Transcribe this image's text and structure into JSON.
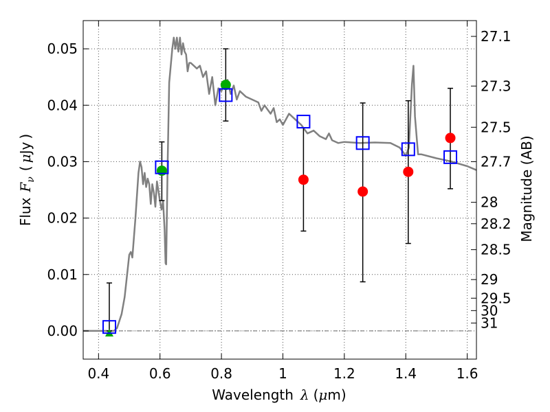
{
  "chart_data": {
    "type": "scatter",
    "title": "",
    "xlabel": {
      "text": "Wavelength",
      "symbol": "λ",
      "unit_open": "(",
      "unit_mu": "μ",
      "unit_rest": "m)"
    },
    "ylabel": {
      "text": "Flux",
      "symbol": "F",
      "subscript": "ν",
      "unit_open": "(",
      "unit_mu": "μ",
      "unit_rest": "Jy",
      "unit_close": ")"
    },
    "y2label": "Magnitude (AB)",
    "xlim": [
      0.35,
      1.63
    ],
    "ylim": [
      -0.005,
      0.055
    ],
    "grid": true,
    "x_ticks": [
      0.4,
      0.6,
      0.8,
      1.0,
      1.2,
      1.4,
      1.6
    ],
    "x_tick_labels": [
      "0.4",
      "0.6",
      "0.8",
      "1",
      "1.2",
      "1.4",
      "1.6"
    ],
    "y_ticks": [
      0.0,
      0.01,
      0.02,
      0.03,
      0.04,
      0.05
    ],
    "y_tick_labels": [
      "0.00",
      "0.01",
      "0.02",
      "0.03",
      "0.04",
      "0.05"
    ],
    "mag_ticks": [
      {
        "label": "27.1",
        "flux": 0.0522
      },
      {
        "label": "27.3",
        "flux": 0.0434
      },
      {
        "label": "27.5",
        "flux": 0.0361
      },
      {
        "label": "27.7",
        "flux": 0.03
      },
      {
        "label": "28",
        "flux": 0.0228
      },
      {
        "label": "28.2",
        "flux": 0.019
      },
      {
        "label": "28.5",
        "flux": 0.0144
      },
      {
        "label": "29",
        "flux": 0.0091
      },
      {
        "label": "29.5",
        "flux": 0.0058
      },
      {
        "label": "30",
        "flux": 0.0036
      },
      {
        "label": "31",
        "flux": 0.0014
      }
    ],
    "model_sed": {
      "x": [
        0.35,
        0.45,
        0.46,
        0.475,
        0.485,
        0.495,
        0.5,
        0.505,
        0.51,
        0.52,
        0.53,
        0.535,
        0.54,
        0.545,
        0.55,
        0.555,
        0.56,
        0.565,
        0.57,
        0.575,
        0.58,
        0.585,
        0.59,
        0.6,
        0.605,
        0.61,
        0.615,
        0.618,
        0.62,
        0.625,
        0.63,
        0.64,
        0.645,
        0.65,
        0.655,
        0.66,
        0.665,
        0.67,
        0.675,
        0.68,
        0.685,
        0.69,
        0.695,
        0.7,
        0.71,
        0.72,
        0.73,
        0.74,
        0.75,
        0.76,
        0.77,
        0.78,
        0.785,
        0.79,
        0.8,
        0.81,
        0.82,
        0.83,
        0.84,
        0.85,
        0.86,
        0.88,
        0.9,
        0.92,
        0.93,
        0.94,
        0.96,
        0.97,
        0.98,
        0.99,
        1.0,
        1.02,
        1.04,
        1.06,
        1.08,
        1.1,
        1.12,
        1.14,
        1.15,
        1.16,
        1.18,
        1.2,
        1.25,
        1.3,
        1.35,
        1.38,
        1.39,
        1.4,
        1.41,
        1.42,
        1.425,
        1.43,
        1.44,
        1.45,
        1.5,
        1.55,
        1.6,
        1.63
      ],
      "y": [
        0.0,
        0.0,
        0.0005,
        0.003,
        0.006,
        0.011,
        0.0135,
        0.014,
        0.013,
        0.02,
        0.028,
        0.03,
        0.029,
        0.026,
        0.028,
        0.0255,
        0.027,
        0.026,
        0.0225,
        0.026,
        0.0245,
        0.022,
        0.0265,
        0.023,
        0.0215,
        0.023,
        0.018,
        0.012,
        0.0118,
        0.03,
        0.044,
        0.05,
        0.052,
        0.05,
        0.052,
        0.0495,
        0.052,
        0.049,
        0.051,
        0.0495,
        0.049,
        0.046,
        0.0475,
        0.0475,
        0.047,
        0.0465,
        0.047,
        0.045,
        0.046,
        0.042,
        0.045,
        0.04,
        0.0415,
        0.043,
        0.0425,
        0.044,
        0.0445,
        0.042,
        0.0435,
        0.041,
        0.0425,
        0.0415,
        0.041,
        0.0405,
        0.039,
        0.04,
        0.0385,
        0.0395,
        0.037,
        0.0375,
        0.0365,
        0.0385,
        0.0375,
        0.0365,
        0.035,
        0.0355,
        0.0345,
        0.034,
        0.035,
        0.0338,
        0.0333,
        0.0335,
        0.0333,
        0.0334,
        0.0333,
        0.0325,
        0.0318,
        0.031,
        0.0325,
        0.0437,
        0.047,
        0.038,
        0.0313,
        0.0313,
        0.0306,
        0.03,
        0.0292,
        0.0285
      ]
    },
    "series": [
      {
        "name": "observed",
        "color": "#ff0000",
        "marker": "circle",
        "points": [
          {
            "x": 1.067,
            "y": 0.0268,
            "yerr_low": 0.0177,
            "yerr_high": 0.036
          },
          {
            "x": 1.26,
            "y": 0.0247,
            "yerr_low": 0.0087,
            "yerr_high": 0.0404
          },
          {
            "x": 1.408,
            "y": 0.0282,
            "yerr_low": 0.0155,
            "yerr_high": 0.0408
          },
          {
            "x": 1.545,
            "y": 0.0342,
            "yerr_low": 0.0252,
            "yerr_high": 0.043
          },
          {
            "x": 0.435,
            "y": 0.0,
            "yerr_low": 0.0,
            "yerr_high": 0.0085
          }
        ]
      },
      {
        "name": "observed_green",
        "color": "#00aa00",
        "marker": "circle",
        "points": [
          {
            "x": 0.606,
            "y": 0.0284,
            "yerr_low": 0.0231,
            "yerr_high": 0.0335
          },
          {
            "x": 0.814,
            "y": 0.0436,
            "yerr_low": 0.0372,
            "yerr_high": 0.05
          }
        ]
      },
      {
        "name": "upper_limit",
        "color": "#00aa00",
        "marker": "triangle-up",
        "points": [
          {
            "x": 0.435,
            "y": -0.0005
          }
        ]
      },
      {
        "name": "model_band",
        "color": "#0000ff",
        "marker": "square-open",
        "points": [
          {
            "x": 0.435,
            "y": 0.0007
          },
          {
            "x": 0.606,
            "y": 0.029
          },
          {
            "x": 0.814,
            "y": 0.0418
          },
          {
            "x": 1.067,
            "y": 0.0371
          },
          {
            "x": 1.26,
            "y": 0.0333
          },
          {
            "x": 1.408,
            "y": 0.0322
          },
          {
            "x": 1.545,
            "y": 0.0308
          }
        ]
      }
    ],
    "colors": {
      "sed_line": "#808080",
      "grid": "#000000",
      "zero_line": "#666666"
    }
  }
}
